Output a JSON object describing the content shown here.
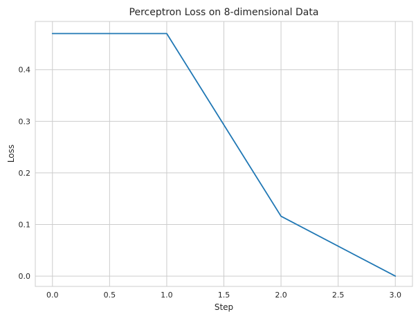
{
  "chart_data": {
    "type": "line",
    "title": "Perceptron Loss on 8-dimensional Data",
    "xlabel": "Step",
    "ylabel": "Loss",
    "xlim": [
      -0.15,
      3.15
    ],
    "ylim": [
      -0.02,
      0.4935
    ],
    "x_ticks": [
      0.0,
      0.5,
      1.0,
      1.5,
      2.0,
      2.5,
      3.0
    ],
    "x_tick_labels": [
      "0.0",
      "0.5",
      "1.0",
      "1.5",
      "2.0",
      "2.5",
      "3.0"
    ],
    "y_ticks": [
      0.0,
      0.1,
      0.2,
      0.3,
      0.4
    ],
    "y_tick_labels": [
      "0.0",
      "0.1",
      "0.2",
      "0.3",
      "0.4"
    ],
    "grid": true,
    "series": [
      {
        "x": [
          0,
          1,
          2,
          3
        ],
        "y": [
          0.47,
          0.47,
          0.116,
          0.0
        ],
        "color": "#1f77b4"
      }
    ],
    "colors": {
      "line": "#1f77b4",
      "grid": "#cccccc",
      "axes_edge": "#cccccc",
      "text": "#262626"
    }
  }
}
